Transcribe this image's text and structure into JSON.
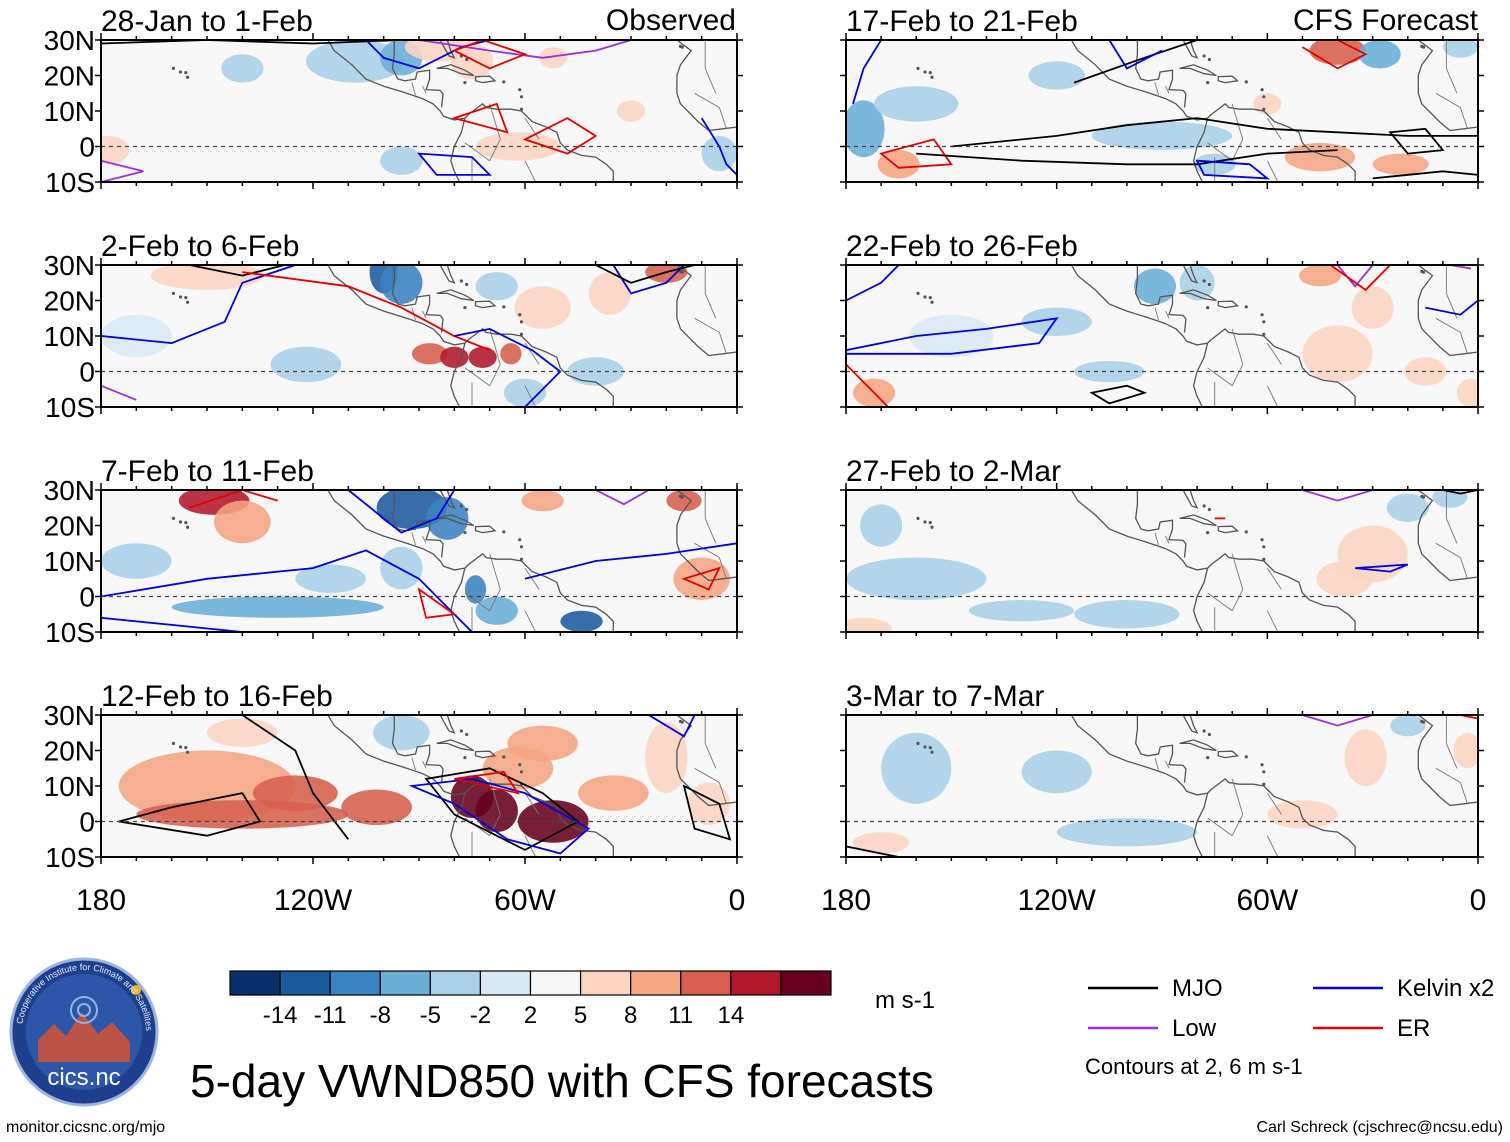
{
  "figure": {
    "title": "5-day VWND850 with CFS forecasts",
    "left_header": "Observed",
    "right_header": "CFS Forecast",
    "source_url": "monitor.cicsnc.org/mjo",
    "credit": "Carl Schreck (cjschrec@ncsu.edu)",
    "logo_label": "cics.nc",
    "logo_ring_text": "Cooperative Institute for Climate and Satellites"
  },
  "axes": {
    "lat_labels": [
      "30N",
      "20N",
      "10N",
      "0",
      "10S"
    ],
    "lat_values": [
      30,
      20,
      10,
      0,
      -10
    ],
    "lon_labels": [
      "180",
      "120W",
      "60W",
      "0"
    ],
    "lon_values": [
      -180,
      -120,
      -60,
      0
    ],
    "lat_range": [
      -10,
      30
    ],
    "lon_range": [
      -180,
      0
    ]
  },
  "panels": [
    {
      "label": "28-Jan to 1-Feb",
      "source": "Observed"
    },
    {
      "label": "2-Feb to 6-Feb",
      "source": "Observed"
    },
    {
      "label": "7-Feb to 11-Feb",
      "source": "Observed"
    },
    {
      "label": "12-Feb to 16-Feb",
      "source": "Observed"
    },
    {
      "label": "17-Feb to 21-Feb",
      "source": "CFS Forecast"
    },
    {
      "label": "22-Feb to 26-Feb",
      "source": "CFS Forecast"
    },
    {
      "label": "27-Feb to 2-Mar",
      "source": "CFS Forecast"
    },
    {
      "label": "3-Mar to 7-Mar",
      "source": "CFS Forecast"
    }
  ],
  "colorbar": {
    "labels": [
      "-14",
      "-11",
      "-8",
      "-5",
      "-2",
      "2",
      "5",
      "8",
      "11",
      "14"
    ],
    "colors": [
      "#08306b",
      "#1c5a9e",
      "#3b82c0",
      "#6aaed6",
      "#a9d0e8",
      "#d9e9f4",
      "#f7f7f7",
      "#fbd5c2",
      "#f4a582",
      "#d6604d",
      "#b2182b",
      "#67001f"
    ],
    "units": "m s-1"
  },
  "legend": {
    "items": [
      {
        "label": "MJO",
        "color": "#000000"
      },
      {
        "label": "Kelvin x2",
        "color": "#0000dd"
      },
      {
        "label": "Low",
        "color": "#9b30d9"
      },
      {
        "label": "ER",
        "color": "#e00000"
      }
    ],
    "note": "Contours at 2, 6 m s-1"
  }
}
